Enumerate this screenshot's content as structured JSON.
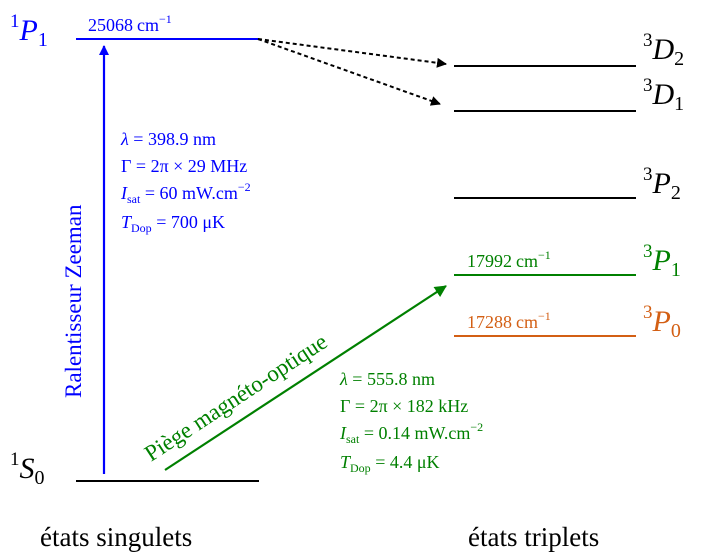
{
  "colors": {
    "black": "#000000",
    "blue": "#0000ff",
    "green": "#008000",
    "orange": "#d35f14"
  },
  "levels": {
    "s0": {
      "sup": "1",
      "letter": "S",
      "sub": "0"
    },
    "p1_singlet": {
      "sup": "1",
      "letter": "P",
      "sub": "1",
      "energy": "25068",
      "unit": "cm",
      "exp": "−1"
    },
    "d2": {
      "sup": "3",
      "letter": "D",
      "sub": "2"
    },
    "d1": {
      "sup": "3",
      "letter": "D",
      "sub": "1"
    },
    "p2": {
      "sup": "3",
      "letter": "P",
      "sub": "2"
    },
    "p1_triplet": {
      "sup": "3",
      "letter": "P",
      "sub": "1",
      "energy": "17992",
      "unit": "cm",
      "exp": "−1"
    },
    "p0": {
      "sup": "3",
      "letter": "P",
      "sub": "0",
      "energy": "17288",
      "unit": "cm",
      "exp": "−1"
    }
  },
  "transitions": {
    "zeeman": {
      "label": "Ralentisseur Zeeman",
      "lambda": "398.9 nm",
      "gamma": "2π × 29 MHz",
      "isat": "60 mW.cm",
      "isat_exp": "−2",
      "tdop": "700 μK"
    },
    "mot": {
      "label": "Piège magnéto-optique",
      "lambda": "555.8 nm",
      "gamma": "2π × 182 kHz",
      "isat": "0.14 mW.cm",
      "isat_exp": "−2",
      "tdop": "4.4 μK"
    }
  },
  "symbols": {
    "lambda": "λ",
    "gamma": "Γ",
    "i": "I",
    "isat_sub": "sat",
    "t": "T",
    "tdop_sub": "Dop",
    "eq": " = "
  },
  "footer": {
    "singlets": "états singulets",
    "triplets": "états triplets"
  }
}
